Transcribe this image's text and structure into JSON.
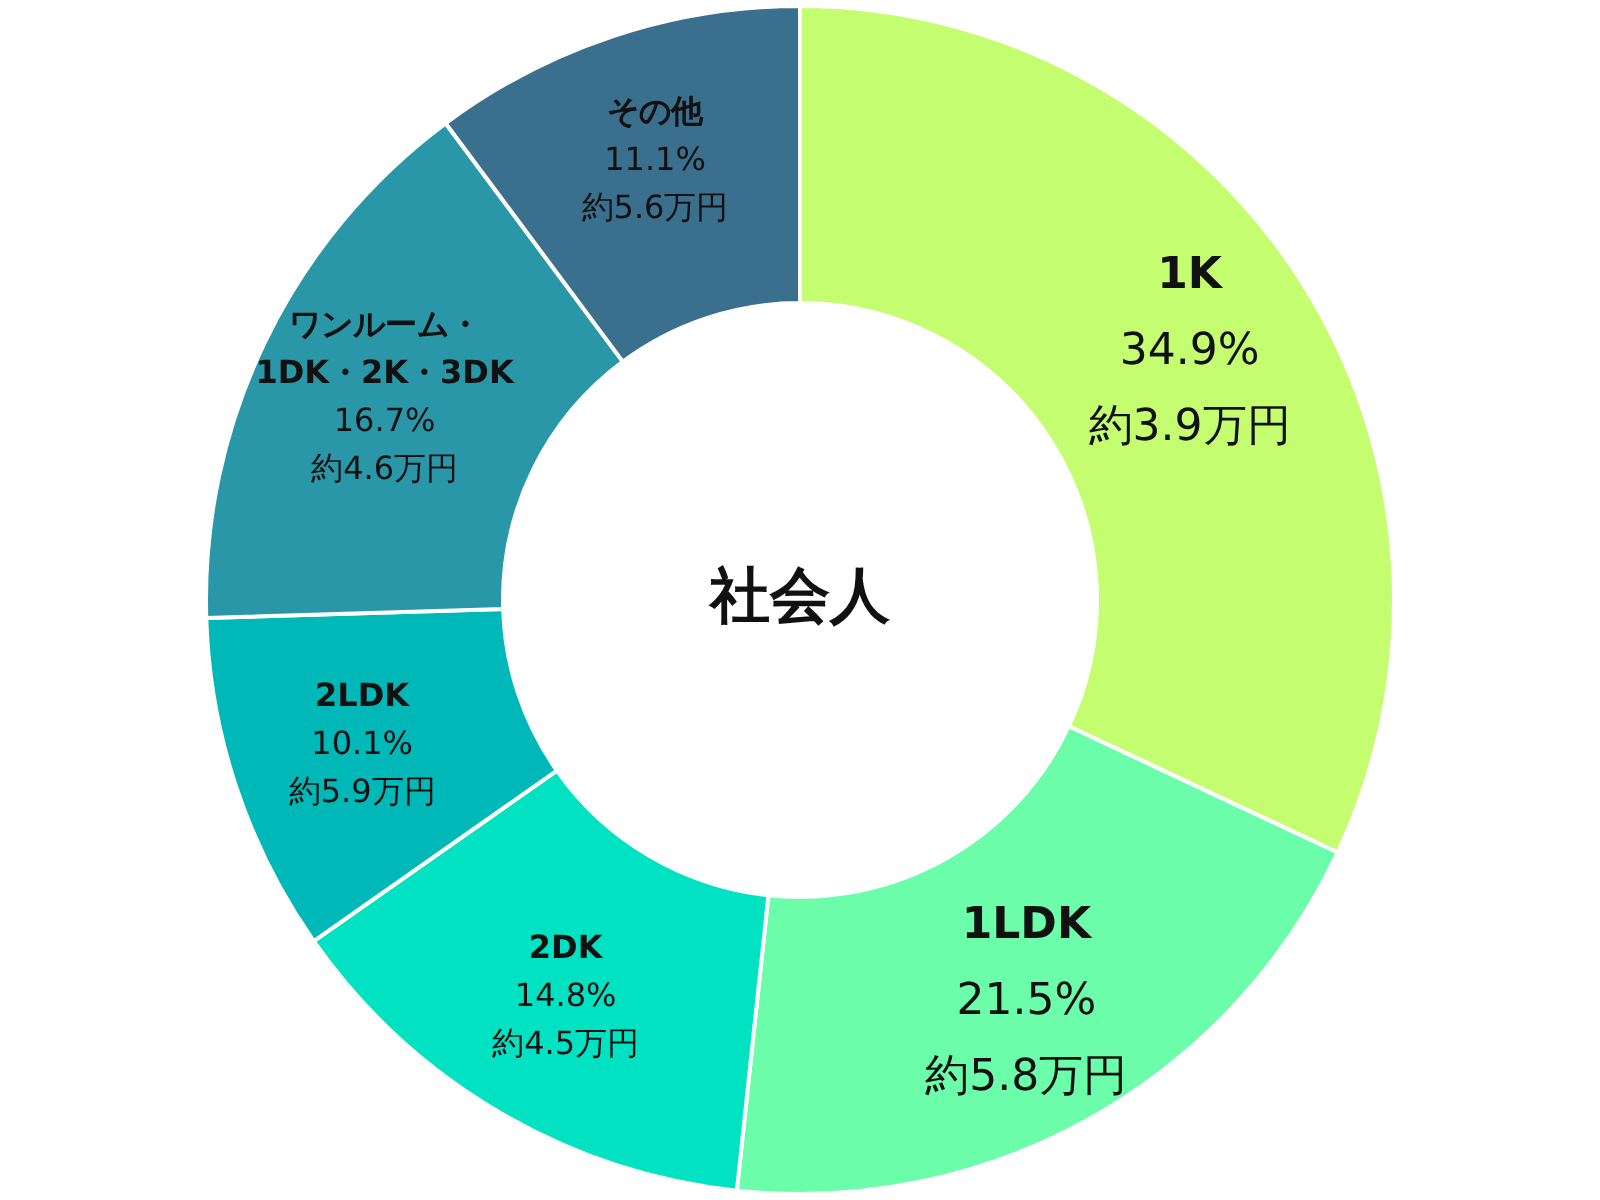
{
  "chart_data": {
    "type": "donut",
    "categories": [
      "1K",
      "1LDK",
      "2DK",
      "2LDK",
      "ワンルーム・1DK・2K・3DK",
      "その他"
    ],
    "values": [
      34.9,
      21.5,
      14.8,
      10.1,
      16.7,
      11.1
    ],
    "colors": [
      "#c4fd70",
      "#6cfdaa",
      "#00e2c2",
      "#00b8b8",
      "#2a97a8",
      "#3b6f8e"
    ],
    "value_labels": [
      "34.9%",
      "21.5%",
      "14.8%",
      "10.1%",
      "16.7%",
      "11.1%"
    ],
    "annotations": [
      "社会人",
      {
        "text": "約3.9万円",
        "x": "1K"
      },
      {
        "text": "約5.8万円",
        "x": "1LDK"
      },
      {
        "text": "約4.5万円",
        "x": "2DK"
      },
      {
        "text": "約5.9万円",
        "x": "2LDK"
      },
      {
        "text": "約4.6万円",
        "x": "ワンルーム・1DK・2K・3DK"
      },
      {
        "text": "約5.6万円",
        "x": "その他"
      }
    ],
    "legend": false
  }
}
